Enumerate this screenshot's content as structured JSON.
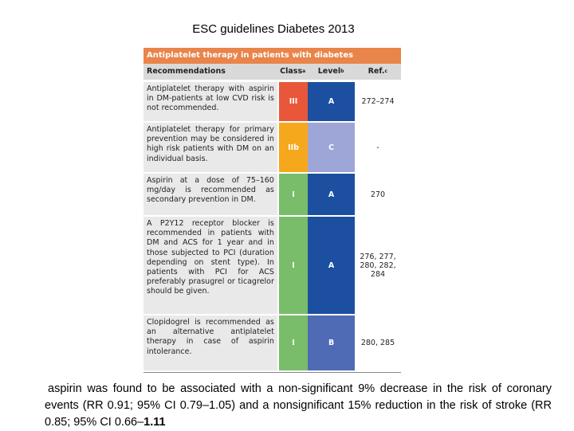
{
  "header": {
    "title": "ESC guidelines Diabetes 2013"
  },
  "table": {
    "caption": "Antiplatelet therapy in patients with diabetes",
    "columns": [
      {
        "text": "Recommendations"
      },
      {
        "text": "Class",
        "sup": "a"
      },
      {
        "text": "Level",
        "sup": "b"
      },
      {
        "text": "Ref.",
        "sup": "c"
      }
    ],
    "rows": [
      [
        "Antiplatelet therapy with aspirin in DM-patients at low CVD risk is not recommended.",
        "III",
        "A",
        "272–274"
      ],
      [
        "Antiplatelet therapy for primary prevention may be considered in high risk patients with DM on an individual basis.",
        "IIb",
        "C",
        "-"
      ],
      [
        "Aspirin at a dose of 75–160 mg/day is recommended as secondary prevention in DM.",
        "I",
        "A",
        "270"
      ],
      [
        "A P2Y12 receptor blocker is recommended in patients with DM and ACS for 1 year and in those subjected to PCI (duration depending on stent type). In patients with PCI for ACS preferably prasugrel or ticagrelor should be given.",
        "I",
        "A",
        "276, 277, 280, 282, 284"
      ],
      [
        "Clopidogrel is recommended as an alternative antiplatelet therapy in case of aspirin intolerance.",
        "I",
        "B",
        "280, 285"
      ]
    ]
  },
  "summary": {
    "text": "aspirin was found to be associated with a non-significant 9% decrease in the risk of coronary events (RR 0.91; 95% CI 0.79–1.05) and a nonsignificant 15% reduction in the risk of stroke (RR 0.85; 95% CI 0.66–",
    "bold": "1.11"
  }
}
